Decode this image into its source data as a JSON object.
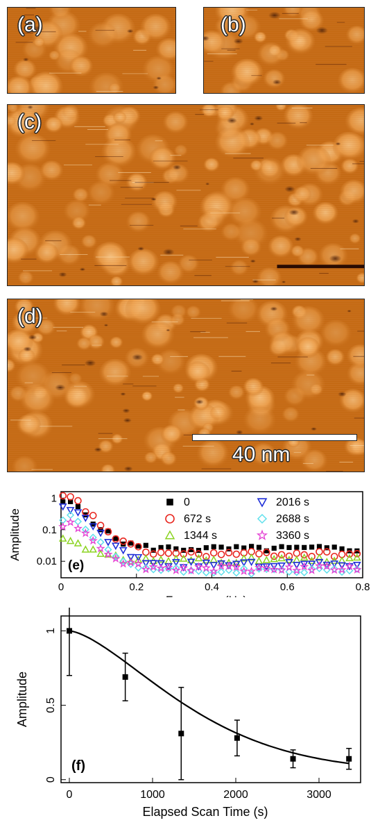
{
  "panels": {
    "a": {
      "label": "(a)"
    },
    "b": {
      "label": "(b)"
    },
    "c": {
      "label": "(c)"
    },
    "d": {
      "label": "(d)",
      "scale_bar": "40 nm"
    }
  },
  "colors": {
    "afm_base": "#c46a14",
    "afm_bright": "#f7c37a",
    "afm_dark": "#3a1404"
  },
  "chart_data": [
    {
      "type": "scatter",
      "panel_label": "(e)",
      "xlabel": "Frequency (Hz)",
      "ylabel": "Amplitude",
      "xlim": [
        0,
        0.8
      ],
      "ylim": [
        0.003,
        1.6
      ],
      "yscale": "log",
      "xticks": [
        0,
        0.2,
        0.4,
        0.6,
        0.8
      ],
      "xtick_labels": [
        "0",
        "0.2",
        "0.4",
        "0.6",
        "0.8"
      ],
      "yticks": [
        0.01,
        0.1,
        1
      ],
      "ytick_labels": [
        "0.01",
        "0.1",
        "1"
      ],
      "legend_placement": "top-right",
      "series": [
        {
          "name": "0",
          "color": "#000000",
          "marker": "filled-square",
          "peak": 0.8,
          "floor": 0.025
        },
        {
          "name": "672 s",
          "color": "#e8251e",
          "marker": "open-circle",
          "peak": 1.1,
          "floor": 0.017
        },
        {
          "name": "1344 s",
          "color": "#8bd321",
          "marker": "open-triangle-up",
          "peak": 0.06,
          "floor": 0.011
        },
        {
          "name": "2016 s",
          "color": "#1f2fd8",
          "marker": "open-triangle-down",
          "peak": 0.55,
          "floor": 0.008
        },
        {
          "name": "2688 s",
          "color": "#5fe0ec",
          "marker": "open-diamond",
          "peak": 0.25,
          "floor": 0.005
        },
        {
          "name": "3360 s",
          "color": "#e43fd3",
          "marker": "star",
          "peak": 0.2,
          "floor": 0.006
        }
      ]
    },
    {
      "type": "scatter",
      "panel_label": "(f)",
      "xlabel": "Elapsed Scan Time (s)",
      "ylabel": "Amplitude",
      "xlim": [
        -100,
        3500
      ],
      "ylim": [
        -0.02,
        1.1
      ],
      "xticks": [
        0,
        1000,
        2000,
        3000
      ],
      "xtick_labels": [
        "0",
        "1000",
        "2000",
        "3000"
      ],
      "yticks": [
        0,
        0.5,
        1
      ],
      "ytick_labels": [
        "0",
        "0.5",
        "1"
      ],
      "points": [
        {
          "x": 0,
          "y": 1.0,
          "err": 0.3
        },
        {
          "x": 672,
          "y": 0.69,
          "err": 0.16
        },
        {
          "x": 1344,
          "y": 0.31,
          "err": 0.31
        },
        {
          "x": 2016,
          "y": 0.28,
          "err": 0.12
        },
        {
          "x": 2688,
          "y": 0.14,
          "err": 0.06
        },
        {
          "x": 3360,
          "y": 0.14,
          "err": 0.07
        }
      ],
      "fit_curve": "decaying"
    }
  ]
}
